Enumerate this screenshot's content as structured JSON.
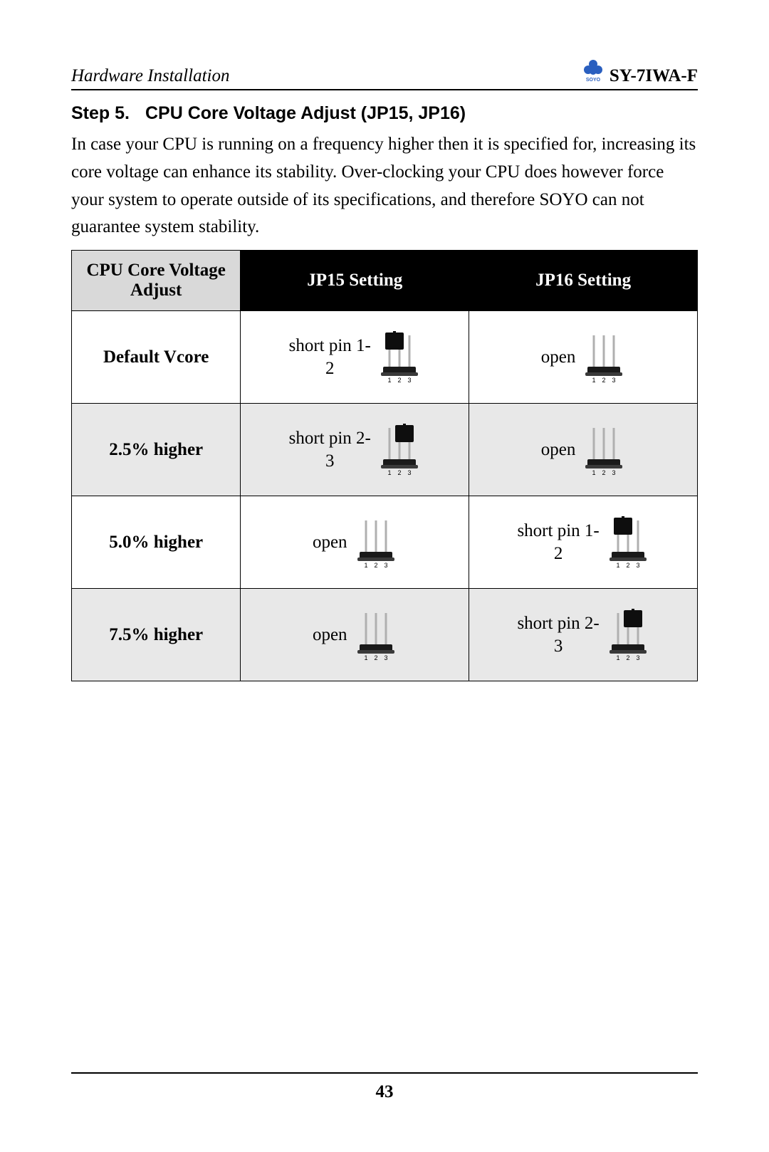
{
  "header": {
    "section": "Hardware Installation",
    "model": "SY-7IWA-F",
    "logo_text": "SOYO"
  },
  "step": {
    "number": "Step 5.",
    "title": "CPU Core Voltage Adjust (JP15, JP16)"
  },
  "body": "In case your CPU is running on a frequency higher then it is specified for, increasing its core voltage can enhance its stability. Over-clocking your CPU does however force your system to operate outside of its specifications, and therefore SOYO can not guarantee system stability.",
  "table": {
    "headers": [
      "CPU Core Voltage Adjust",
      "JP15 Setting",
      "JP16 Setting"
    ],
    "col_widths": [
      "27%",
      "36.5%",
      "36.5%"
    ],
    "rows": [
      {
        "label": "Default Vcore",
        "shaded": false,
        "jp15": {
          "text": "short pin 1-\n2",
          "jumper": "1-2"
        },
        "jp16": {
          "text": "open",
          "jumper": "open"
        }
      },
      {
        "label": "2.5% higher",
        "shaded": true,
        "jp15": {
          "text": "short pin 2-\n3",
          "jumper": "2-3"
        },
        "jp16": {
          "text": "open",
          "jumper": "open"
        }
      },
      {
        "label": "5.0% higher",
        "shaded": false,
        "jp15": {
          "text": "open",
          "jumper": "open"
        },
        "jp16": {
          "text": "short pin 1-\n2",
          "jumper": "1-2"
        }
      },
      {
        "label": "7.5% higher",
        "shaded": true,
        "jp15": {
          "text": "open",
          "jumper": "open"
        },
        "jp16": {
          "text": "short pin 2-\n3",
          "jumper": "2-3"
        }
      }
    ],
    "pin_labels": [
      "1",
      "2",
      "3"
    ]
  },
  "page_number": "43",
  "colors": {
    "pin": "#b0b0b0",
    "base_top": "#1a1a1a",
    "base_mid": "#3a3a3a",
    "cap": "#0e0e0e",
    "label": "#000000",
    "logo_blue": "#2a5fbf"
  }
}
